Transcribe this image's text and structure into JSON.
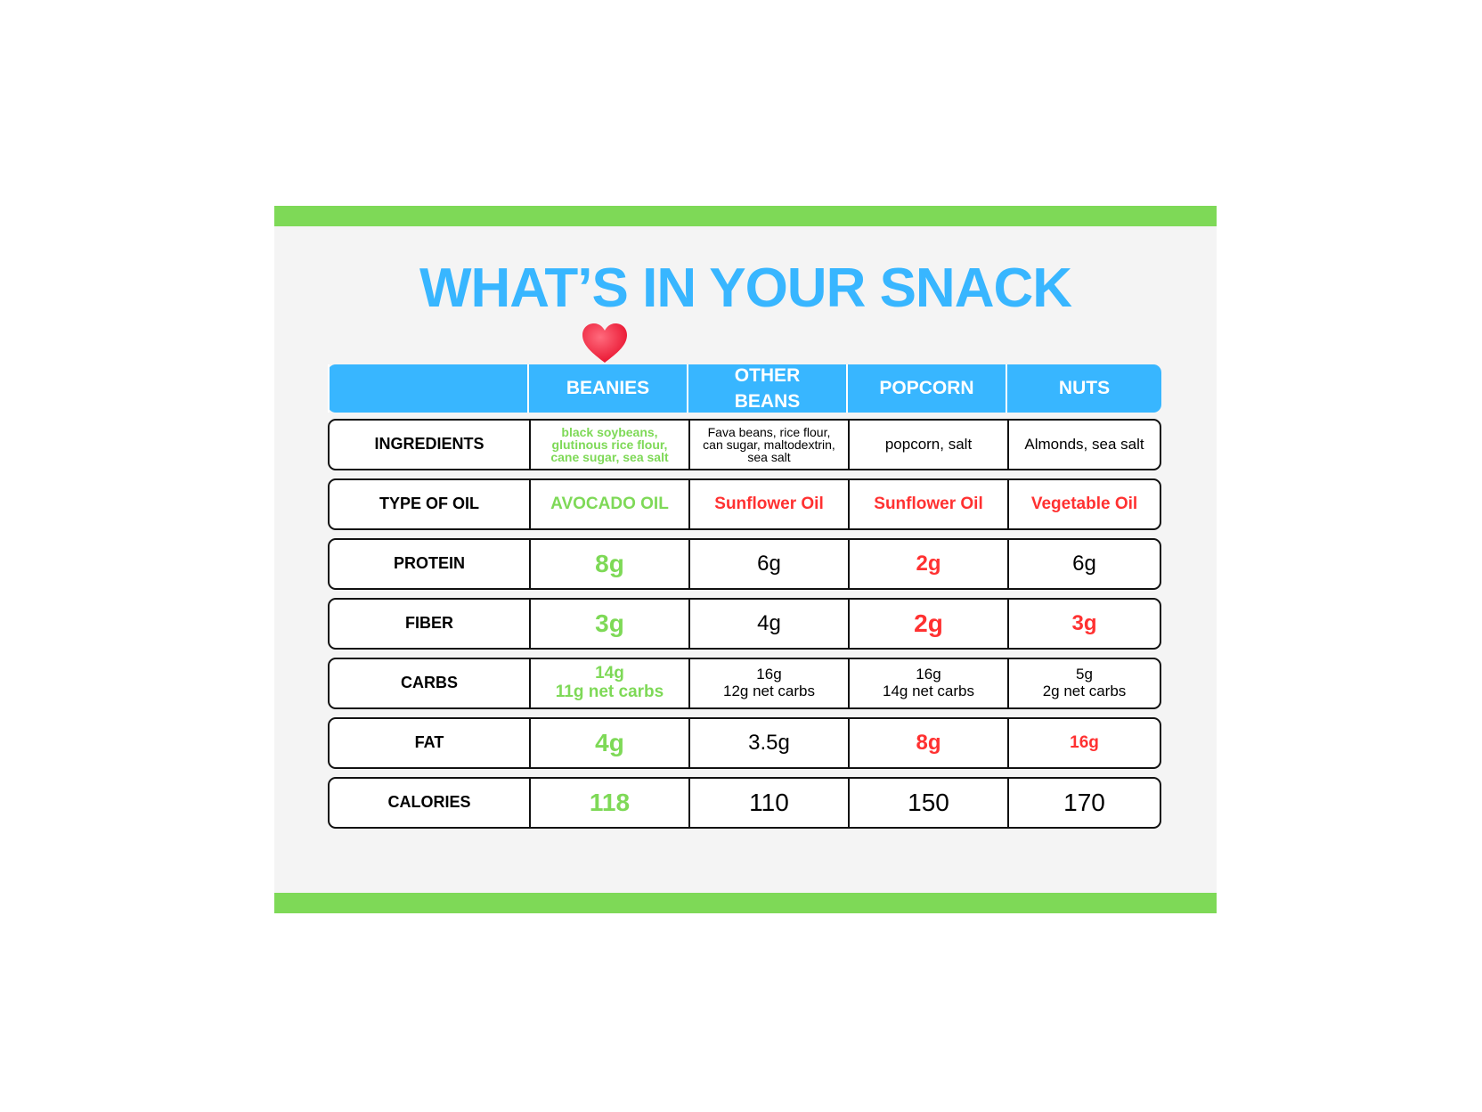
{
  "title": "WHAT’S IN YOUR SNACK",
  "colors": {
    "accent_blue": "#38b6ff",
    "good_green": "#7ed957",
    "bad_red": "#ff3131",
    "border": "#111111"
  },
  "icons": {
    "favorite": "heart-icon"
  },
  "table": {
    "headers": [
      "",
      "BEANIES",
      "OTHER\nBEANS",
      "POPCORN",
      "NUTS"
    ],
    "rows": [
      {
        "label": "INGREDIENTS",
        "cells": [
          "black soybeans,\nglutinous rice flour,\ncane sugar, sea salt",
          "Fava beans, rice flour,\ncan sugar, maltodextrin,\nsea salt",
          "popcorn, salt",
          "Almonds, sea salt"
        ]
      },
      {
        "label": "TYPE OF OIL",
        "cells": [
          "AVOCADO OIL",
          "Sunflower Oil",
          "Sunflower Oil",
          "Vegetable Oil"
        ]
      },
      {
        "label": "PROTEIN",
        "cells": [
          "8g",
          "6g",
          "2g",
          "6g"
        ]
      },
      {
        "label": "FIBER",
        "cells": [
          "3g",
          "4g",
          "2g",
          "3g"
        ]
      },
      {
        "label": "CARBS",
        "cells": [
          "14g\n11g net carbs",
          "16g\n12g net carbs",
          "16g\n14g net carbs",
          "5g\n2g net carbs"
        ]
      },
      {
        "label": "FAT",
        "cells": [
          "4g",
          "3.5g",
          "8g",
          "16g"
        ]
      },
      {
        "label": "CALORIES",
        "cells": [
          "118",
          "110",
          "150",
          "170"
        ]
      }
    ]
  }
}
